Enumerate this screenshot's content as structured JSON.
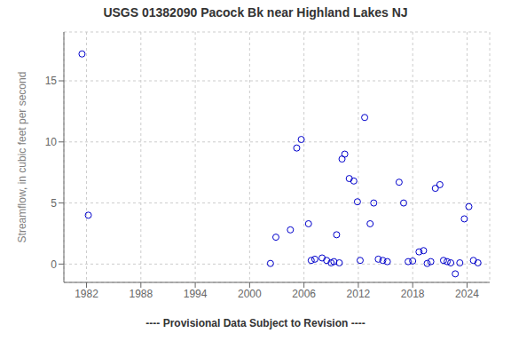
{
  "chart_data": {
    "type": "scatter",
    "title": "USGS 01382090 Pacock Bk near Highland Lakes NJ",
    "y_label": "Streamflow, in cubic feet per second",
    "subtitle": "---- Provisional Data Subject to Revision ----",
    "x": [
      1981.5,
      1982.2,
      2002.3,
      2002.9,
      2004.5,
      2005.2,
      2005.7,
      2006.5,
      2006.8,
      2007.2,
      2008.0,
      2008.5,
      2009.0,
      2009.3,
      2009.6,
      2009.9,
      2010.2,
      2010.5,
      2011.0,
      2011.5,
      2011.9,
      2012.2,
      2012.7,
      2013.3,
      2013.7,
      2014.2,
      2014.7,
      2015.2,
      2016.5,
      2017.0,
      2017.5,
      2018.0,
      2018.7,
      2019.2,
      2019.6,
      2020.0,
      2020.5,
      2021.0,
      2021.4,
      2021.8,
      2022.2,
      2022.7,
      2023.2,
      2023.7,
      2024.2,
      2024.7,
      2025.2
    ],
    "values": [
      17.2,
      4.0,
      0.05,
      2.2,
      2.8,
      9.5,
      10.2,
      3.3,
      0.3,
      0.4,
      0.5,
      0.3,
      0.1,
      0.2,
      2.4,
      0.1,
      8.6,
      9.0,
      7.0,
      6.8,
      5.1,
      0.3,
      12.0,
      3.3,
      5.0,
      0.4,
      0.3,
      0.2,
      6.7,
      5.0,
      0.2,
      0.25,
      1.0,
      1.1,
      0.05,
      0.2,
      6.2,
      6.5,
      0.3,
      0.2,
      0.1,
      -0.8,
      0.1,
      3.7,
      4.7,
      0.3,
      0.1
    ],
    "color": "#0000cc",
    "marker": "circle",
    "xlim": [
      1979.5,
      2026.5
    ],
    "ylim": [
      -1.5,
      19.0
    ],
    "xticks": [
      1982,
      1988,
      1994,
      2000,
      2006,
      2012,
      2018,
      2024
    ],
    "yticks": [
      0,
      5,
      10,
      15
    ],
    "grid": true
  }
}
